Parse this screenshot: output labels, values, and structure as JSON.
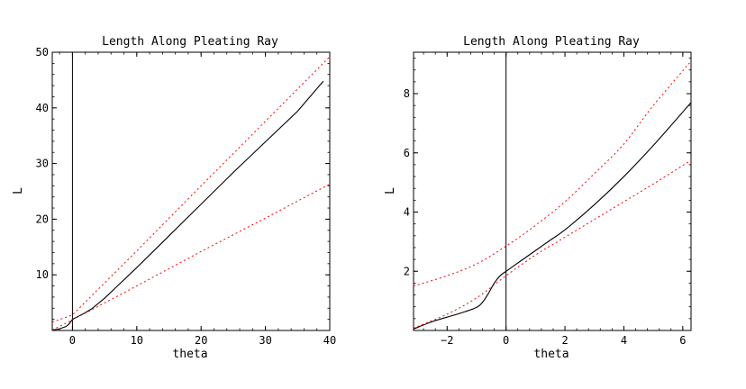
{
  "chart_data": [
    {
      "type": "line",
      "title": "Length Along Pleating Ray",
      "xlabel": "theta",
      "ylabel": "L",
      "xlim": [
        -3.14,
        40
      ],
      "ylim": [
        0,
        50
      ],
      "xticks": [
        0,
        10,
        20,
        30,
        40
      ],
      "yticks": [
        10,
        20,
        30,
        40,
        50
      ],
      "x_tick_labels": [
        "0",
        "10",
        "20",
        "30",
        "40"
      ],
      "y_tick_labels": [
        "10",
        "20",
        "30",
        "40",
        "50"
      ],
      "zero_line": "vertical line at theta = 0",
      "grid": false,
      "series": [
        {
          "style": "solid",
          "color": "#000000",
          "x": [
            -3.14,
            -2,
            -1,
            -0.5,
            0,
            1,
            2,
            3,
            5,
            10,
            15,
            20,
            25,
            30,
            35,
            39
          ],
          "y": [
            0.05,
            0.3,
            0.7,
            1.2,
            2.0,
            2.6,
            3.2,
            3.9,
            5.8,
            11.3,
            17.0,
            22.7,
            28.4,
            33.9,
            39.4,
            44.8
          ]
        },
        {
          "style": "dotted",
          "color": "#ff0000",
          "x": [
            -3.14,
            0,
            10,
            20,
            30,
            40
          ],
          "y": [
            1.5,
            2.8,
            14.3,
            26.0,
            37.6,
            49.2
          ]
        },
        {
          "style": "dotted",
          "color": "#ff0000",
          "x": [
            -3.14,
            0,
            10,
            20,
            30,
            40
          ],
          "y": [
            0.1,
            1.9,
            8.0,
            14.2,
            20.2,
            26.3
          ]
        }
      ]
    },
    {
      "type": "line",
      "title": "Length Along Pleating Ray",
      "xlabel": "theta",
      "ylabel": "L",
      "xlim": [
        -3.14,
        6.28
      ],
      "ylim": [
        0,
        9.4
      ],
      "xticks": [
        -2,
        0,
        2,
        4,
        6
      ],
      "yticks": [
        2,
        4,
        6,
        8
      ],
      "x_tick_labels": [
        "−2",
        "0",
        "2",
        "4",
        "6"
      ],
      "y_tick_labels": [
        "2",
        "4",
        "6",
        "8"
      ],
      "zero_line": "vertical line at theta = 0",
      "grid": false,
      "series": [
        {
          "style": "solid",
          "color": "#000000",
          "x": [
            -3.14,
            -2.5,
            -2,
            -1.5,
            -1,
            -0.8,
            -0.6,
            -0.4,
            -0.2,
            0,
            0.5,
            1,
            1.5,
            2,
            3,
            4,
            5,
            6.28
          ],
          "y": [
            0.05,
            0.3,
            0.45,
            0.6,
            0.78,
            0.95,
            1.25,
            1.6,
            1.85,
            2.0,
            2.35,
            2.7,
            3.05,
            3.4,
            4.25,
            5.2,
            6.25,
            7.7
          ],
          "smooth": true
        },
        {
          "style": "dotted",
          "color": "#ff0000",
          "x": [
            -3.14,
            -2,
            -1,
            0,
            1,
            2,
            3,
            4,
            5,
            6.28
          ],
          "y": [
            1.5,
            1.85,
            2.25,
            2.85,
            3.55,
            4.35,
            5.3,
            6.3,
            7.6,
            9.1
          ],
          "smooth": true
        },
        {
          "style": "dotted",
          "color": "#ff0000",
          "x": [
            -3.14,
            -2,
            -1,
            0,
            1,
            2,
            3,
            4,
            5,
            6.28
          ],
          "y": [
            0.08,
            0.55,
            1.1,
            1.85,
            2.55,
            3.15,
            3.75,
            4.35,
            4.95,
            5.75
          ],
          "smooth": true
        }
      ]
    }
  ]
}
